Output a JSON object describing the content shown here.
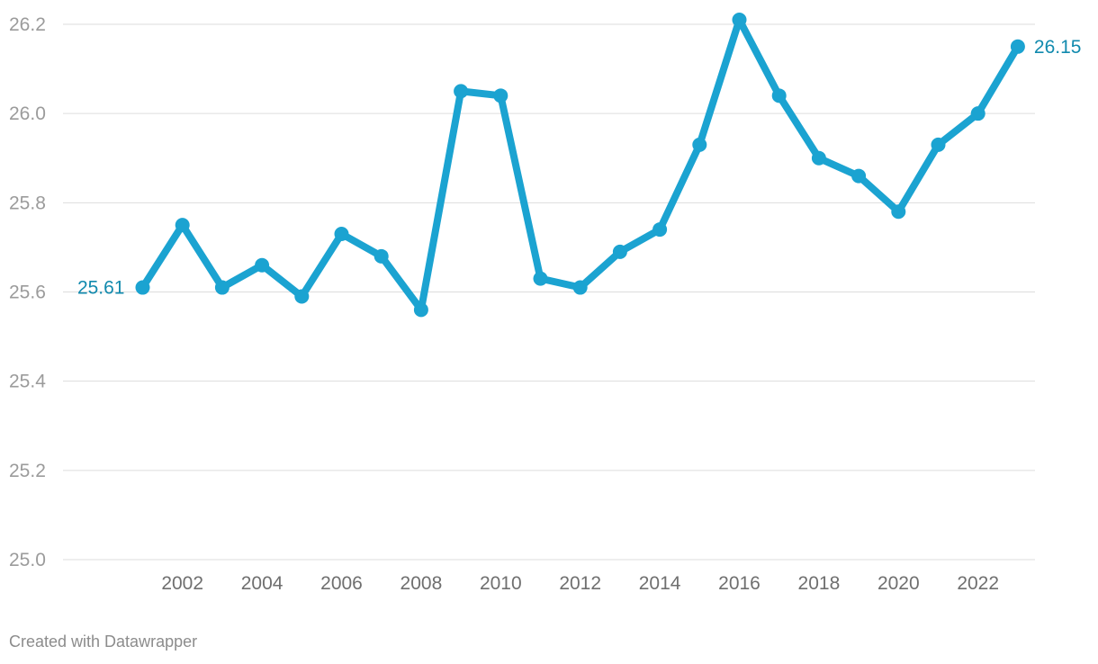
{
  "chart_data": {
    "type": "line",
    "title": "",
    "xlabel": "",
    "ylabel": "",
    "x": [
      2001,
      2002,
      2003,
      2004,
      2005,
      2006,
      2007,
      2008,
      2009,
      2010,
      2011,
      2012,
      2013,
      2014,
      2015,
      2016,
      2017,
      2018,
      2019,
      2020,
      2021,
      2022,
      2023
    ],
    "series": [
      {
        "values": [
          25.61,
          25.75,
          25.61,
          25.66,
          25.59,
          25.73,
          25.68,
          25.56,
          26.05,
          26.04,
          25.63,
          25.61,
          25.69,
          25.74,
          25.93,
          26.21,
          26.04,
          25.9,
          25.86,
          25.78,
          25.93,
          26.0,
          26.15
        ],
        "color": "#1ba3d1"
      }
    ],
    "ylim": [
      25.0,
      26.2
    ],
    "yticks": [
      "25.0",
      "25.2",
      "25.4",
      "25.6",
      "25.8",
      "26.0",
      "26.2"
    ],
    "xticks": [
      "2002",
      "2004",
      "2006",
      "2008",
      "2010",
      "2012",
      "2014",
      "2016",
      "2018",
      "2020",
      "2022"
    ],
    "annotations": [
      {
        "text": "25.61",
        "x": 2001,
        "y": 25.61,
        "position": "left"
      },
      {
        "text": "26.15",
        "x": 2023,
        "y": 26.15,
        "position": "right"
      }
    ],
    "annotation_color": "#118aae",
    "grid": true,
    "legend": "none"
  },
  "footer": {
    "credit": "Created with Datawrapper"
  }
}
